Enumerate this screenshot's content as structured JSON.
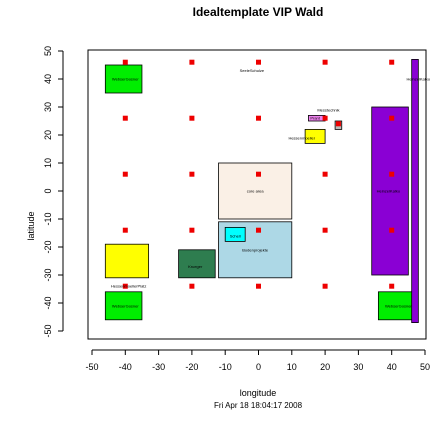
{
  "chart_data": {
    "type": "scatter",
    "title": "Idealtemplate VIP Wald",
    "xlabel": "longitude",
    "ylabel": "latitude",
    "footer": "Fri Apr 18 18:04:17 2008",
    "xlim": [
      -50,
      50
    ],
    "ylim": [
      -50,
      50
    ],
    "grid": false,
    "xticks": [
      -50,
      -40,
      -30,
      -20,
      -10,
      0,
      10,
      20,
      30,
      40,
      50
    ],
    "yticks": [
      -50,
      -40,
      -30,
      -20,
      -10,
      0,
      10,
      20,
      30,
      40,
      50
    ],
    "marker_color": "#ee0000",
    "points": [
      {
        "x": -40,
        "y": 46
      },
      {
        "x": -20,
        "y": 46
      },
      {
        "x": 0,
        "y": 46
      },
      {
        "x": 20,
        "y": 46
      },
      {
        "x": 40,
        "y": 46
      },
      {
        "x": -40,
        "y": 26
      },
      {
        "x": -20,
        "y": 26
      },
      {
        "x": 0,
        "y": 26
      },
      {
        "x": 20,
        "y": 26
      },
      {
        "x": 40,
        "y": 26
      },
      {
        "x": -40,
        "y": 6
      },
      {
        "x": -20,
        "y": 6
      },
      {
        "x": 0,
        "y": 6
      },
      {
        "x": 20,
        "y": 6
      },
      {
        "x": 40,
        "y": 6
      },
      {
        "x": -40,
        "y": -14
      },
      {
        "x": -20,
        "y": -14
      },
      {
        "x": 0,
        "y": -14
      },
      {
        "x": 20,
        "y": -14
      },
      {
        "x": 40,
        "y": -14
      },
      {
        "x": -40,
        "y": -34
      },
      {
        "x": -20,
        "y": -34
      },
      {
        "x": 0,
        "y": -34
      },
      {
        "x": 20,
        "y": -34
      },
      {
        "x": 40,
        "y": -34
      },
      {
        "x": 24,
        "y": 24
      }
    ],
    "booths": [
      {
        "label": "WebserGosner",
        "x0": -46,
        "x1": -35,
        "y0": 35,
        "y1": 45,
        "color": "#00ee00"
      },
      {
        "label": "WebserGosner",
        "x0": -46,
        "x1": -35,
        "y0": -46,
        "y1": -36,
        "color": "#00ee00"
      },
      {
        "label": "WebserGosner",
        "x0": 36,
        "x1": 47,
        "y0": -46,
        "y1": -36,
        "color": "#00ee00"
      },
      {
        "label": "HessenmoellerPlatz",
        "x0": -46,
        "x1": -33,
        "y0": -31,
        "y1": -19,
        "color": "#ffff00"
      },
      {
        "label": "Krueger",
        "x0": -24,
        "x1": -13,
        "y0": -31,
        "y1": -21,
        "color": "#2e7d4f"
      },
      {
        "label": "Bodenprojekte",
        "x0": -12,
        "x1": 10,
        "y0": -31,
        "y1": -11,
        "color": "#add8e6"
      },
      {
        "label": "Schell",
        "x0": -10,
        "x1": -4,
        "y0": -18,
        "y1": -13,
        "color": "#00ffff"
      },
      {
        "label": "core area",
        "x0": -12,
        "x1": 10,
        "y0": -10,
        "y1": 10,
        "color": "#faf0e6"
      },
      {
        "label": "HeinzelKatko",
        "x0": 34,
        "x1": 45,
        "y0": -30,
        "y1": 30,
        "color": "#8a00d4"
      },
      {
        "label": "HeinzelKatko",
        "x0": 46,
        "x1": 48,
        "y0": -47,
        "y1": 47,
        "color": "#8a00d4"
      },
      {
        "label": "Hessenmoeller",
        "x0": 14,
        "x1": 20,
        "y0": 17,
        "y1": 22,
        "color": "#ffff00"
      },
      {
        "label": "Prant",
        "x0": 15,
        "x1": 20,
        "y0": 25,
        "y1": 27,
        "color": "#ee82ee"
      },
      {
        "label": "",
        "x0": 23,
        "x1": 25,
        "y0": 22,
        "y1": 25,
        "color": "#bbbbbb"
      }
    ],
    "labels": [
      {
        "text": "SeeleSchulze",
        "x": -2,
        "y": 43
      },
      {
        "text": "Messtechnik",
        "x": 21,
        "y": 29
      },
      {
        "text": "Hessenmoeller",
        "x": 13,
        "y": 19
      },
      {
        "text": "Prant",
        "x": 17,
        "y": 26
      },
      {
        "text": "core area",
        "x": -1,
        "y": 0
      },
      {
        "text": "Bodenprojekte",
        "x": -1,
        "y": -21
      },
      {
        "text": "Schell",
        "x": -7,
        "y": -16
      },
      {
        "text": "Krueger",
        "x": -19,
        "y": -27
      },
      {
        "text": "HeinzelKatko",
        "x": 39,
        "y": 0
      },
      {
        "text": "HeinzelKatko",
        "x": 48,
        "y": 40
      },
      {
        "text": "HessenmoellerPlatz",
        "x": -39,
        "y": -34
      },
      {
        "text": "WebserGosner",
        "x": -40,
        "y": 40
      },
      {
        "text": "WebserGosner",
        "x": -40,
        "y": -41
      },
      {
        "text": "WebserGosner",
        "x": 42,
        "y": -41
      }
    ]
  }
}
